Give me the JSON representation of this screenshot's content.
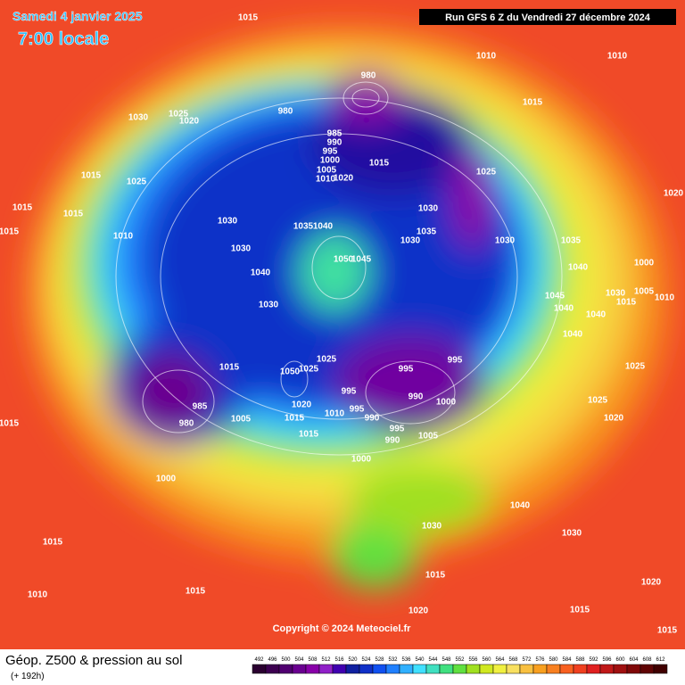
{
  "header": {
    "date": "Samedi 4 janvier 2025",
    "time": "7:00 locale",
    "run": "Run GFS 6 Z du Vendredi 27 décembre 2024"
  },
  "map": {
    "copyright": "Copyright © 2024 Meteociel.fr",
    "pressure_labels": [
      "1015",
      "1010",
      "1010",
      "980",
      "980",
      "1030",
      "1025",
      "1020",
      "1015",
      "985",
      "990",
      "995",
      "1000",
      "1005",
      "1010",
      "1015",
      "1020",
      "1025",
      "1015",
      "1025",
      "1020",
      "1015",
      "1015",
      "1030",
      "1030",
      "1035",
      "1040",
      "1015",
      "1010",
      "1035",
      "1030",
      "1030",
      "1035",
      "1030",
      "1040",
      "1050",
      "1045",
      "1040",
      "1000",
      "1030",
      "1005",
      "1010",
      "1045",
      "1040",
      "1015",
      "1040",
      "1030",
      "1040",
      "1025",
      "1015",
      "995",
      "1050",
      "1025",
      "995",
      "990",
      "1000",
      "1025",
      "985",
      "980",
      "995",
      "1020",
      "1010",
      "995",
      "990",
      "1015",
      "1005",
      "1025",
      "1020",
      "1015",
      "995",
      "990",
      "1005",
      "1015",
      "1000",
      "1000",
      "1040",
      "1030",
      "1030",
      "1015",
      "1015",
      "1015",
      "1010",
      "1020",
      "1020",
      "1015",
      "1015"
    ]
  },
  "footer": {
    "title": "Géop. Z500 & pression au sol",
    "lead": "(+ 192h)"
  },
  "legend": {
    "values": [
      492,
      496,
      500,
      504,
      508,
      512,
      516,
      520,
      524,
      528,
      532,
      536,
      540,
      544,
      548,
      552,
      556,
      560,
      564,
      568,
      572,
      576,
      580,
      584,
      588,
      592,
      596,
      600,
      604,
      608,
      612
    ],
    "colors": [
      "#2a0030",
      "#3c0050",
      "#500070",
      "#6a0090",
      "#8800a8",
      "#9020c8",
      "#4000b0",
      "#1020a0",
      "#1030c8",
      "#1050f0",
      "#2080ff",
      "#30b0ff",
      "#40e0ff",
      "#40e0c0",
      "#40e080",
      "#60e040",
      "#a0e020",
      "#d0e820",
      "#f0f040",
      "#f8e060",
      "#f8c040",
      "#f8a020",
      "#f88020",
      "#f86020",
      "#f04020",
      "#e02020",
      "#c01818",
      "#a01010",
      "#800808",
      "#600404",
      "#400000"
    ]
  }
}
